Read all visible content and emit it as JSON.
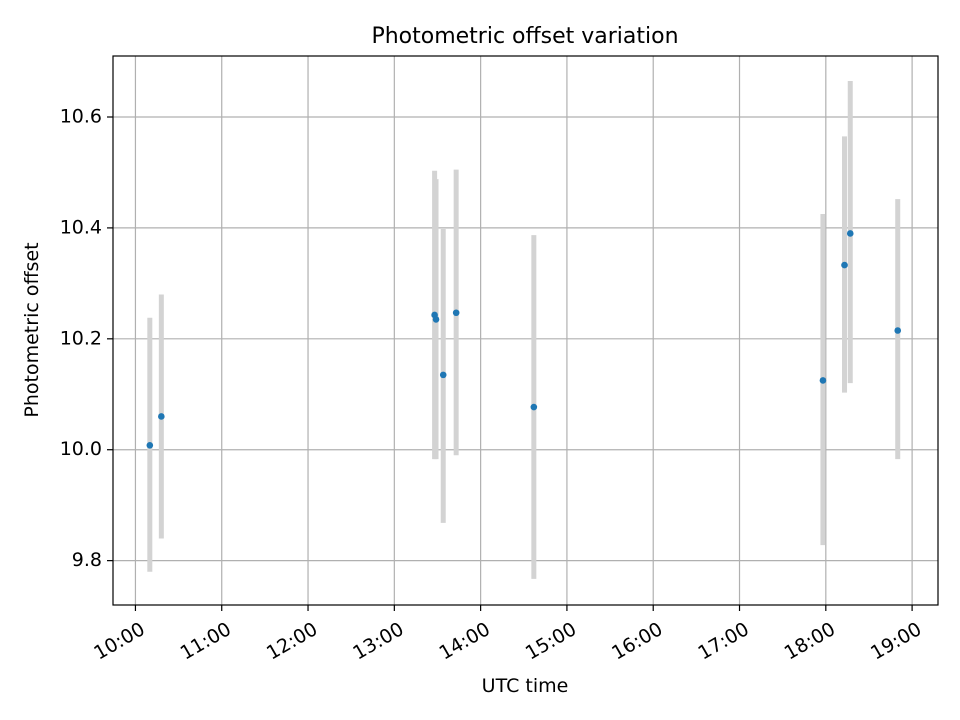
{
  "chart_data": {
    "type": "scatter",
    "title": "Photometric offset variation",
    "xlabel": "UTC time",
    "ylabel": "Photometric offset",
    "x_tick_labels": [
      "10:00",
      "11:00",
      "12:00",
      "13:00",
      "14:00",
      "15:00",
      "16:00",
      "17:00",
      "18:00",
      "19:00"
    ],
    "x_tick_hours": [
      10,
      11,
      12,
      13,
      14,
      15,
      16,
      17,
      18,
      19
    ],
    "xlim_hours": [
      9.74,
      19.3
    ],
    "y_tick_labels": [
      "9.8",
      "10.0",
      "10.2",
      "10.4",
      "10.6"
    ],
    "y_ticks": [
      9.8,
      10.0,
      10.2,
      10.4,
      10.6
    ],
    "ylim": [
      9.72,
      10.71
    ],
    "grid": true,
    "x_label_rotation": "30 degrees",
    "colors": {
      "point": "#1f77b4",
      "errorbar": "#d3d3d3",
      "grid": "#b0b0b0"
    },
    "series": [
      {
        "points": [
          {
            "time": "10:10",
            "y": 10.008,
            "low": 9.78,
            "high": 10.238
          },
          {
            "time": "10:18",
            "y": 10.06,
            "low": 9.84,
            "high": 10.28
          },
          {
            "time": "13:28",
            "y": 10.243,
            "low": 9.983,
            "high": 10.503
          },
          {
            "time": "13:29",
            "y": 10.235,
            "low": 9.983,
            "high": 10.488
          },
          {
            "time": "13:34",
            "y": 10.135,
            "low": 9.868,
            "high": 10.398
          },
          {
            "time": "13:43",
            "y": 10.247,
            "low": 9.99,
            "high": 10.505
          },
          {
            "time": "14:37",
            "y": 10.077,
            "low": 9.767,
            "high": 10.387
          },
          {
            "time": "17:58",
            "y": 10.125,
            "low": 9.828,
            "high": 10.425
          },
          {
            "time": "18:13",
            "y": 10.333,
            "low": 10.103,
            "high": 10.565
          },
          {
            "time": "18:17",
            "y": 10.39,
            "low": 10.12,
            "high": 10.665
          },
          {
            "time": "18:50",
            "y": 10.215,
            "low": 9.983,
            "high": 10.452
          }
        ]
      }
    ]
  }
}
